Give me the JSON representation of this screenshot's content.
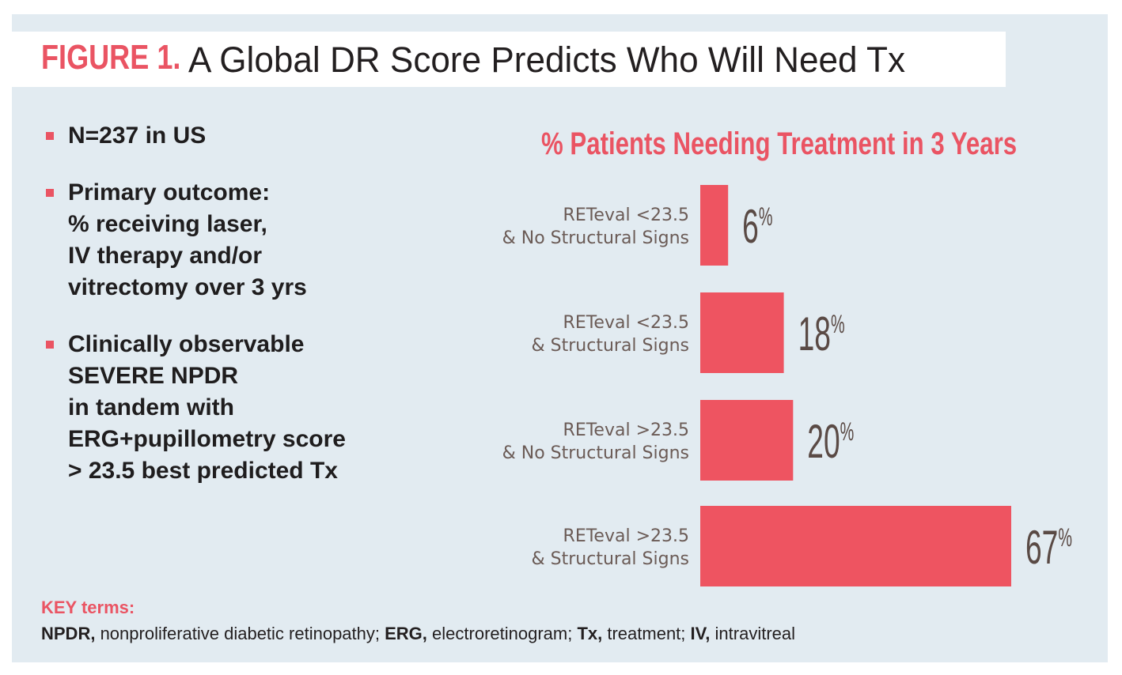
{
  "figure": {
    "label": "FIGURE 1.",
    "title": "A Global DR Score Predicts Who Will Need Tx"
  },
  "bullets": [
    {
      "lines": [
        "N=237 in US"
      ]
    },
    {
      "lines": [
        "Primary outcome:",
        "% receiving laser,",
        "IV therapy and/or",
        "vitrectomy over 3 yrs"
      ]
    },
    {
      "lines": [
        "Clinically observable",
        "SEVERE NPDR",
        "in tandem with",
        "ERG+pupillometry score",
        "> 23.5 best predicted Tx"
      ]
    }
  ],
  "key": {
    "heading": "KEY terms:",
    "terms": [
      {
        "term": "NPDR,",
        "definition": " nonproliferative diabetic retinopathy; "
      },
      {
        "term": "ERG,",
        "definition": " electroretinogram; "
      },
      {
        "term": "Tx,",
        "definition": " treatment; "
      },
      {
        "term": "IV,",
        "definition": " intravitreal"
      }
    ]
  },
  "colors": {
    "accent": "#ea5463",
    "bar": "#ee5461",
    "label_text": "#6b5b56",
    "value_text": "#5a4a45",
    "background": "#e2ebf1"
  },
  "chart_data": {
    "type": "bar",
    "orientation": "horizontal",
    "title": "% Patients Needing Treatment in 3 Years",
    "categories": [
      [
        "RETeval <23.5",
        "& No Structural Signs"
      ],
      [
        "RETeval <23.5",
        "& Structural Signs"
      ],
      [
        "RETeval >23.5",
        "& No Structural Signs"
      ],
      [
        "RETeval >23.5",
        "& Structural Signs"
      ]
    ],
    "values": [
      6,
      18,
      20,
      67
    ],
    "value_labels": [
      "6",
      "18",
      "20",
      "67"
    ],
    "unit": "%",
    "xlim": [
      0,
      67
    ]
  }
}
